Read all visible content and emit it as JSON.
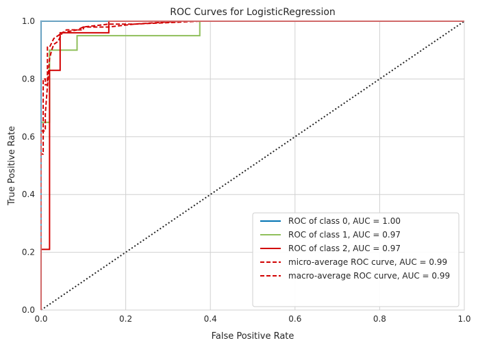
{
  "chart_data": {
    "type": "line",
    "title": "ROC Curves for LogisticRegression",
    "xlabel": "False Positive Rate",
    "ylabel": "True Positive Rate",
    "xlim": [
      0,
      1
    ],
    "ylim": [
      0,
      1
    ],
    "grid": true,
    "legend_position": "bottom-right",
    "x_ticks": [
      "0.0",
      "0.2",
      "0.4",
      "0.6",
      "0.8",
      "1.0"
    ],
    "y_ticks": [
      "0.0",
      "0.2",
      "0.4",
      "0.6",
      "0.8",
      "1.0"
    ],
    "series": [
      {
        "name": "ROC of class 0, AUC = 1.00",
        "color": "#0072b2",
        "dash": "solid",
        "x": [
          0.0,
          0.0,
          1.0
        ],
        "y": [
          0.0,
          1.0,
          1.0
        ]
      },
      {
        "name": "ROC of class 1, AUC = 0.97",
        "color": "#8fbf5a",
        "dash": "solid",
        "x": [
          0.0,
          0.0,
          0.02,
          0.02,
          0.085,
          0.085,
          0.375,
          0.375,
          1.0
        ],
        "y": [
          0.0,
          0.65,
          0.65,
          0.9,
          0.9,
          0.95,
          0.95,
          1.0,
          1.0
        ]
      },
      {
        "name": "ROC of class 2, AUC = 0.97",
        "color": "#d10000",
        "dash": "solid",
        "x": [
          0.0,
          0.0,
          0.02,
          0.02,
          0.03,
          0.03,
          0.045,
          0.045,
          0.16,
          0.16,
          1.0
        ],
        "y": [
          0.0,
          0.21,
          0.21,
          0.83,
          0.83,
          0.83,
          0.83,
          0.96,
          0.96,
          1.0,
          1.0
        ]
      },
      {
        "name": "micro-average ROC curve, AUC = 0.99",
        "color": "#d10000",
        "dash": "dashed",
        "x": [
          0.0,
          0.0,
          0.01,
          0.01,
          0.01,
          0.01,
          0.02,
          0.025,
          0.03,
          0.04,
          0.05,
          0.06,
          0.1,
          0.1,
          0.16,
          0.22,
          0.33,
          1.0
        ],
        "y": [
          0.0,
          0.62,
          0.62,
          0.68,
          0.68,
          0.68,
          0.87,
          0.9,
          0.92,
          0.93,
          0.96,
          0.97,
          0.97,
          0.98,
          0.98,
          0.99,
          1.0,
          1.0
        ]
      },
      {
        "name": "macro-average ROC curve, AUC = 0.99",
        "color": "#d10000",
        "dash": "dashed",
        "x": [
          0.0,
          0.0,
          0.005,
          0.005,
          0.01,
          0.01,
          0.015,
          0.015,
          0.02,
          0.03,
          0.05,
          0.085,
          0.1,
          0.16,
          0.22,
          0.375,
          1.0
        ],
        "y": [
          0.0,
          0.54,
          0.54,
          0.8,
          0.8,
          0.78,
          0.78,
          0.91,
          0.91,
          0.94,
          0.96,
          0.97,
          0.98,
          0.99,
          0.99,
          1.0,
          1.0
        ]
      },
      {
        "name": "",
        "color": "#222222",
        "dash": "dotted",
        "x": [
          0.0,
          1.0
        ],
        "y": [
          0.0,
          1.0
        ]
      }
    ]
  }
}
